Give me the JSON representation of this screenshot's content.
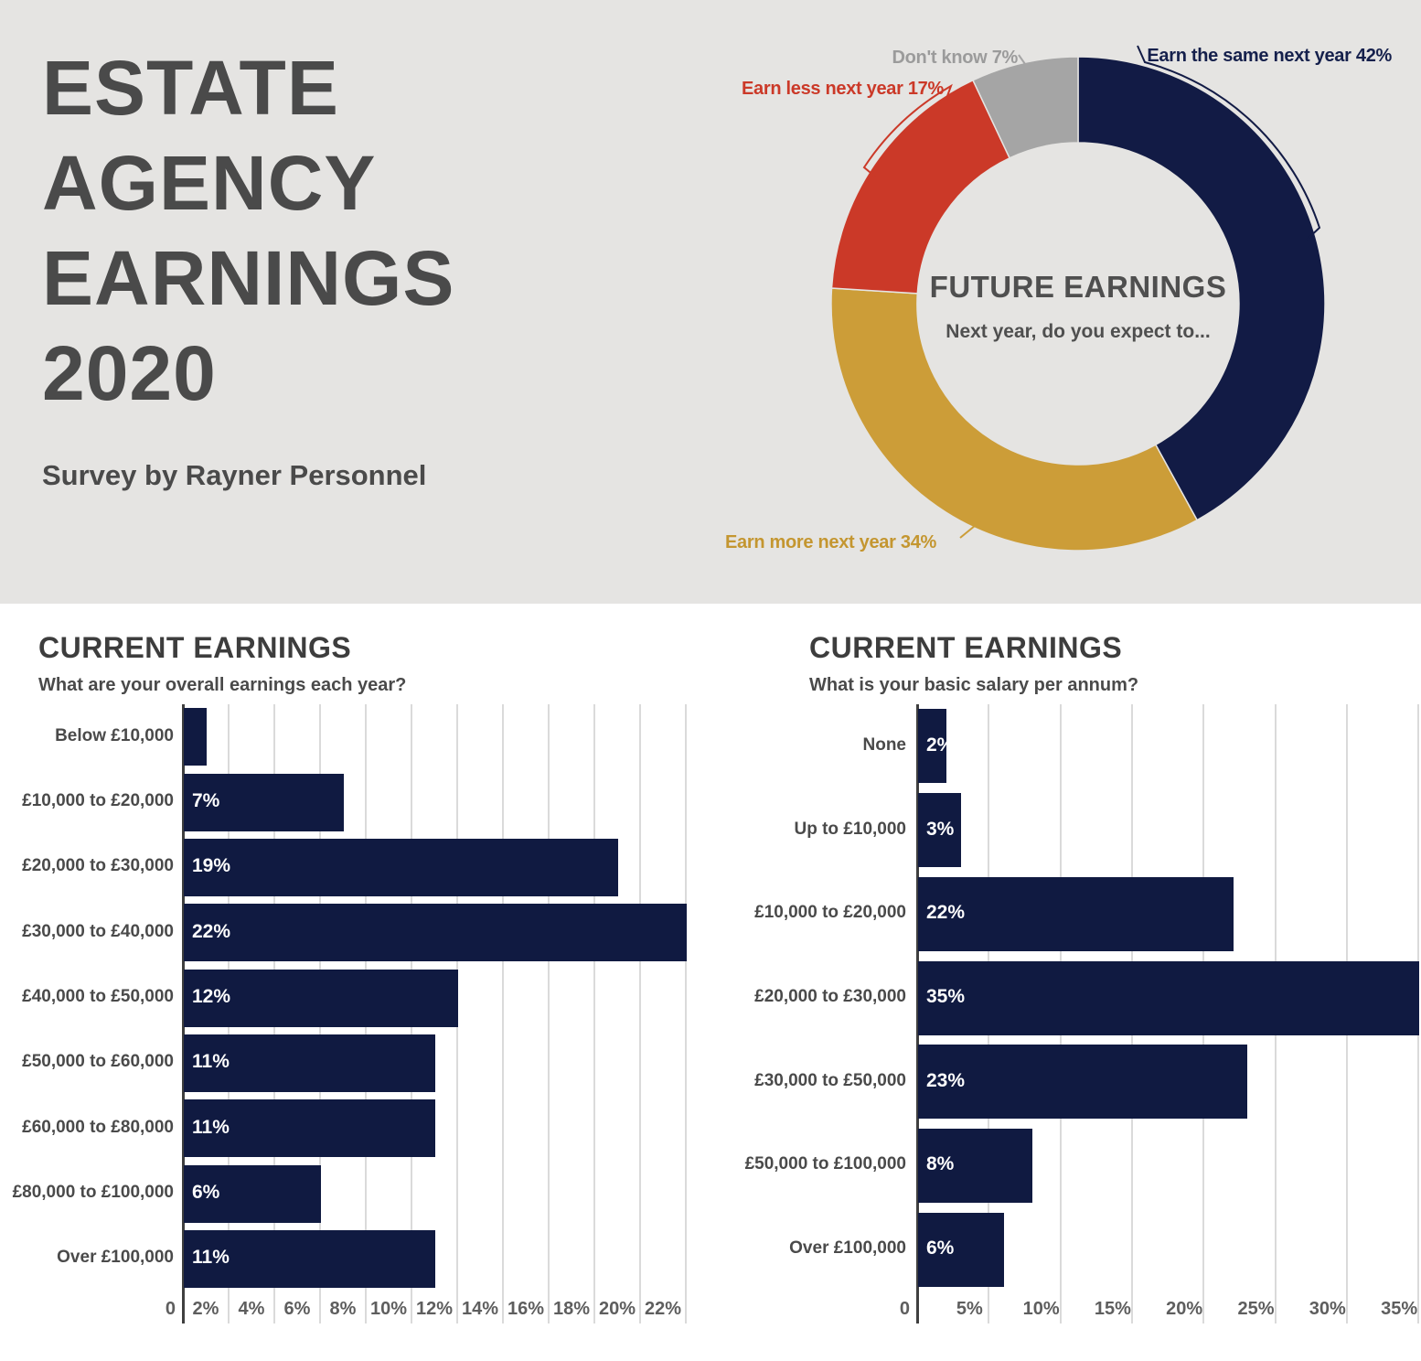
{
  "hero": {
    "title": "ESTATE AGENCY EARNINGS 2020",
    "subtitle": "Survey by Rayner Personnel"
  },
  "donut": {
    "labels": [
      {
        "text": "Earn the same next year 42%",
        "color": "#15204C"
      },
      {
        "text": "Earn more next year 34%",
        "color": "#C49630"
      },
      {
        "text": "Earn less next year 17%",
        "color": "#CB3928"
      },
      {
        "text": "Don't know 7%",
        "color": "#9B9B9B"
      }
    ]
  },
  "chart_data": [
    {
      "type": "pie",
      "subtype": "donut",
      "title": "FUTURE EARNINGS",
      "subtitle": "Next year, do you expect to...",
      "labels": [
        "Earn the same next year",
        "Earn more next year",
        "Earn less next year",
        "Don't know"
      ],
      "values": [
        42,
        34,
        17,
        7
      ],
      "colors": [
        "#121B45",
        "#CC9D38",
        "#CB3928",
        "#A5A5A5"
      ],
      "start_angle": "top",
      "direction": "clockwise",
      "legend": "none, direct callout labels"
    },
    {
      "type": "bar",
      "orientation": "horizontal",
      "title": "CURRENT EARNINGS",
      "question": "What are your overall earnings each year?",
      "categories": [
        "Below £10,000",
        "£10,000 to £20,000",
        "£20,000 to £30,000",
        "£30,000 to £40,000",
        "£40,000 to £50,000",
        "£50,000 to £60,000",
        "£60,000 to £80,000",
        "£80,000 to £100,000",
        "Over £100,000"
      ],
      "values": [
        1,
        7,
        19,
        22,
        12,
        11,
        11,
        6,
        11
      ],
      "data_labels": [
        "",
        "7%",
        "19%",
        "22%",
        "12%",
        "11%",
        "11%",
        "6%",
        "11%"
      ],
      "bar_color": "#101A41",
      "xlim": [
        0,
        22
      ],
      "tick_step": 2,
      "tick_labels": [
        "0",
        "2%",
        "4%",
        "6%",
        "8%",
        "10%",
        "12%",
        "14%",
        "16%",
        "18%",
        "20%",
        "22%"
      ],
      "grid": true
    },
    {
      "type": "bar",
      "orientation": "horizontal",
      "title": "CURRENT EARNINGS",
      "question": "What is your basic salary per annum?",
      "categories": [
        "None",
        "Up to £10,000",
        "£10,000 to £20,000",
        "£20,000 to £30,000",
        "£30,000 to £50,000",
        "£50,000 to £100,000",
        "Over £100,000"
      ],
      "values": [
        2,
        3,
        22,
        35,
        23,
        8,
        6
      ],
      "data_labels": [
        "2%",
        "3%",
        "22%",
        "35%",
        "23%",
        "8%",
        "6%"
      ],
      "bar_color": "#101A41",
      "xlim": [
        0,
        35
      ],
      "tick_step": 5,
      "tick_labels": [
        "0",
        "5%",
        "10%",
        "15%",
        "20%",
        "25%",
        "30%",
        "35%"
      ],
      "grid": true
    }
  ]
}
